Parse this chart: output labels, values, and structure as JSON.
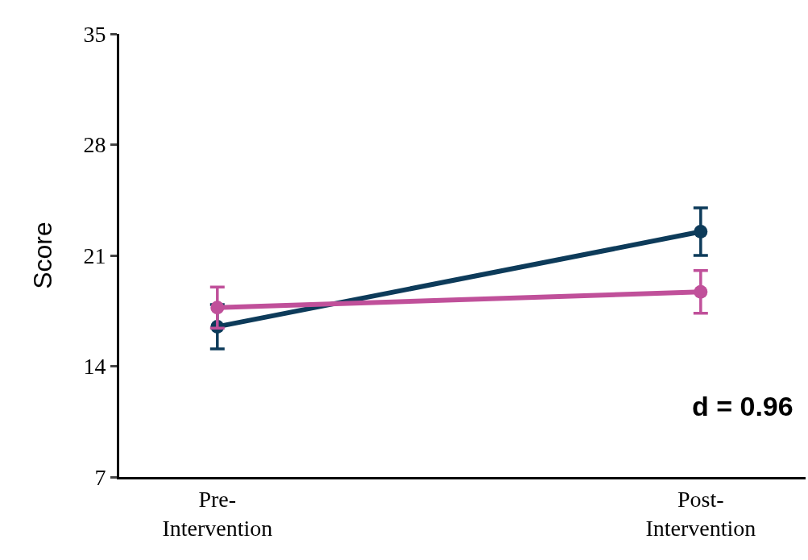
{
  "chart_data": {
    "type": "line",
    "ylabel": "Score",
    "categories": [
      "Pre-\nIntervention",
      "Post-\nIntervention"
    ],
    "series": [
      {
        "color": "#0d3b5a",
        "values": [
          16.5,
          22.5
        ],
        "errors": [
          1.4,
          1.5
        ]
      },
      {
        "color": "#c0509a",
        "values": [
          17.7,
          18.7
        ],
        "errors": [
          1.3,
          1.35
        ]
      }
    ],
    "ylim": [
      7,
      35
    ],
    "yticks": [
      7,
      14,
      21,
      28,
      35
    ],
    "grid": false,
    "marker": "circle",
    "line_style": "solid",
    "annotations": [
      "d = 0.96"
    ]
  }
}
